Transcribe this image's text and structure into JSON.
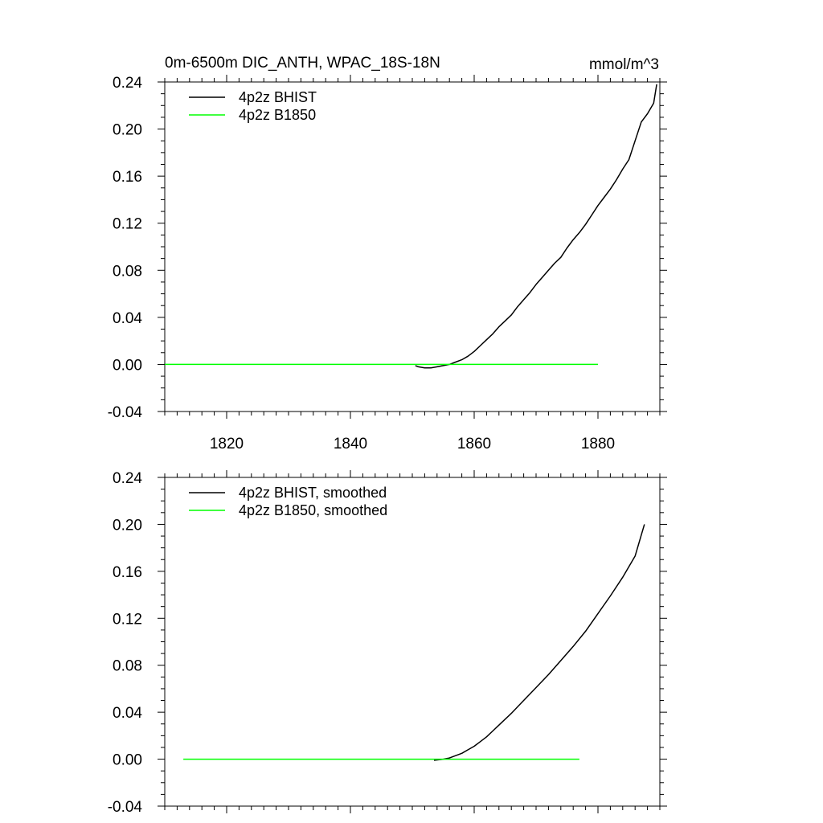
{
  "chart_data": [
    {
      "type": "line",
      "title": "0m-6500m DIC_ANTH, WPAC_18S-18N",
      "units": "mmol/m^3",
      "xlabel": "",
      "ylabel": "",
      "xlim": [
        1810,
        1890
      ],
      "ylim": [
        -0.04,
        0.24
      ],
      "xticks": [
        1820,
        1840,
        1860,
        1880
      ],
      "xtick_labels": [
        "1820",
        "1840",
        "1860",
        "1880"
      ],
      "yticks": [
        -0.04,
        0.0,
        0.04,
        0.08,
        0.12,
        0.16,
        0.2,
        0.24
      ],
      "ytick_labels": [
        "-0.04",
        "0.00",
        "0.04",
        "0.08",
        "0.12",
        "0.16",
        "0.20",
        "0.24"
      ],
      "grid": false,
      "legend_position": "top-left",
      "series": [
        {
          "name": "4p2z BHIST",
          "color": "#000000",
          "x": [
            1850.5,
            1851,
            1852,
            1853,
            1854,
            1855,
            1856,
            1857,
            1858,
            1859,
            1860,
            1861,
            1862,
            1863,
            1864,
            1865,
            1866,
            1867,
            1868,
            1869,
            1870,
            1871,
            1872,
            1873,
            1874,
            1875,
            1876,
            1877,
            1878,
            1879,
            1880,
            1881,
            1882,
            1883,
            1884,
            1885,
            1886,
            1887,
            1888,
            1889,
            1889.5
          ],
          "y": [
            -0.001,
            -0.002,
            -0.003,
            -0.003,
            -0.002,
            -0.001,
            0.0,
            0.002,
            0.004,
            0.007,
            0.011,
            0.016,
            0.021,
            0.026,
            0.032,
            0.037,
            0.042,
            0.049,
            0.055,
            0.061,
            0.068,
            0.074,
            0.08,
            0.086,
            0.091,
            0.099,
            0.106,
            0.112,
            0.119,
            0.127,
            0.135,
            0.142,
            0.149,
            0.157,
            0.166,
            0.174,
            0.19,
            0.206,
            0.213,
            0.222,
            0.238
          ]
        },
        {
          "name": "4p2z B1850",
          "color": "#00ff00",
          "x": [
            1810,
            1880
          ],
          "y": [
            0.0,
            0.0
          ]
        }
      ]
    },
    {
      "type": "line",
      "title": "",
      "units": "",
      "xlabel": "",
      "ylabel": "",
      "xlim": [
        1810,
        1890
      ],
      "ylim": [
        -0.04,
        0.24
      ],
      "xticks": [
        1820,
        1840,
        1860,
        1880
      ],
      "xtick_labels": [],
      "yticks": [
        -0.04,
        0.0,
        0.04,
        0.08,
        0.12,
        0.16,
        0.2,
        0.24
      ],
      "ytick_labels": [
        "-0.04",
        "0.00",
        "0.04",
        "0.08",
        "0.12",
        "0.16",
        "0.20",
        "0.24"
      ],
      "grid": false,
      "legend_position": "top-left",
      "series": [
        {
          "name": "4p2z BHIST, smoothed",
          "color": "#000000",
          "x": [
            1853.5,
            1855,
            1856,
            1857,
            1858,
            1859,
            1860,
            1861,
            1862,
            1863,
            1864,
            1866,
            1868,
            1870,
            1872,
            1874,
            1876,
            1878,
            1880,
            1882,
            1884,
            1886,
            1887.5
          ],
          "y": [
            -0.001,
            0.0,
            0.001,
            0.003,
            0.005,
            0.008,
            0.011,
            0.015,
            0.019,
            0.024,
            0.029,
            0.039,
            0.05,
            0.061,
            0.072,
            0.084,
            0.096,
            0.109,
            0.124,
            0.139,
            0.155,
            0.173,
            0.2
          ]
        },
        {
          "name": "4p2z B1850, smoothed",
          "color": "#00ff00",
          "x": [
            1813,
            1877
          ],
          "y": [
            0.0,
            0.0
          ]
        }
      ]
    }
  ]
}
